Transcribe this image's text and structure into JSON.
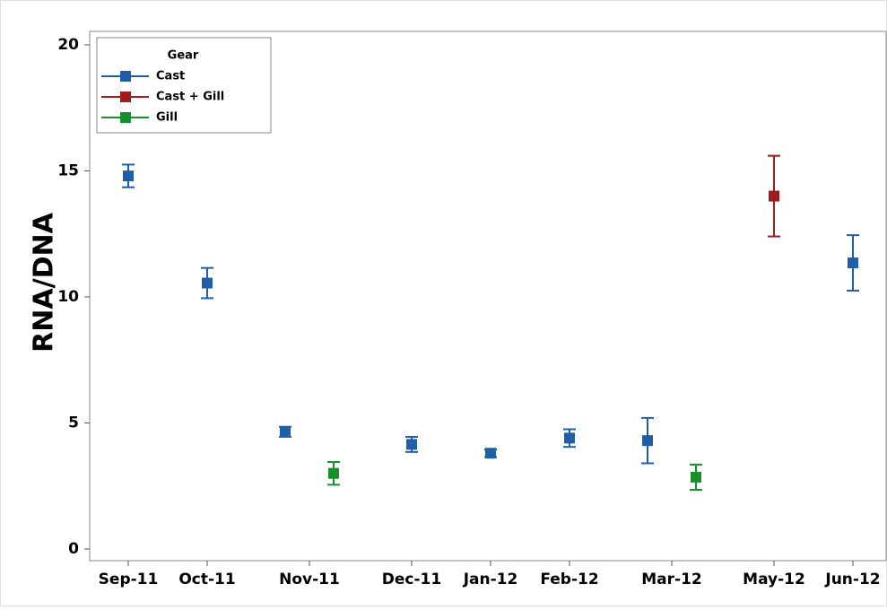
{
  "chart_data": {
    "type": "errorbar",
    "y_label": "RNA/DNA",
    "legend_title": "Gear",
    "legend_position": "upper left",
    "categories": [
      "Sep-11",
      "Oct-11",
      "Nov-11",
      "Dec-11",
      "Jan-12",
      "Feb-12",
      "Mar-12",
      "May-12",
      "Jun-12"
    ],
    "series": [
      {
        "name": "Cast",
        "color": "#1f5fa8",
        "values": [
          14.8,
          10.55,
          4.65,
          4.15,
          3.8,
          4.4,
          4.3,
          null,
          11.35
        ],
        "errors": [
          0.45,
          0.6,
          0.2,
          0.3,
          0.15,
          0.35,
          0.9,
          null,
          1.1
        ]
      },
      {
        "name": "Cast + Gill",
        "color": "#a01b1b",
        "values": [
          null,
          null,
          null,
          null,
          null,
          null,
          null,
          14.0,
          null
        ],
        "errors": [
          null,
          null,
          null,
          null,
          null,
          null,
          null,
          1.6,
          null
        ]
      },
      {
        "name": "Gill",
        "color": "#16902a",
        "values": [
          null,
          null,
          3.0,
          null,
          null,
          null,
          2.85,
          null,
          null
        ],
        "errors": [
          null,
          null,
          0.45,
          null,
          null,
          null,
          0.5,
          null,
          null
        ]
      }
    ],
    "ylim": [
      0,
      20
    ],
    "yticks": [
      0,
      5,
      10,
      15,
      20
    ],
    "grid": false
  }
}
